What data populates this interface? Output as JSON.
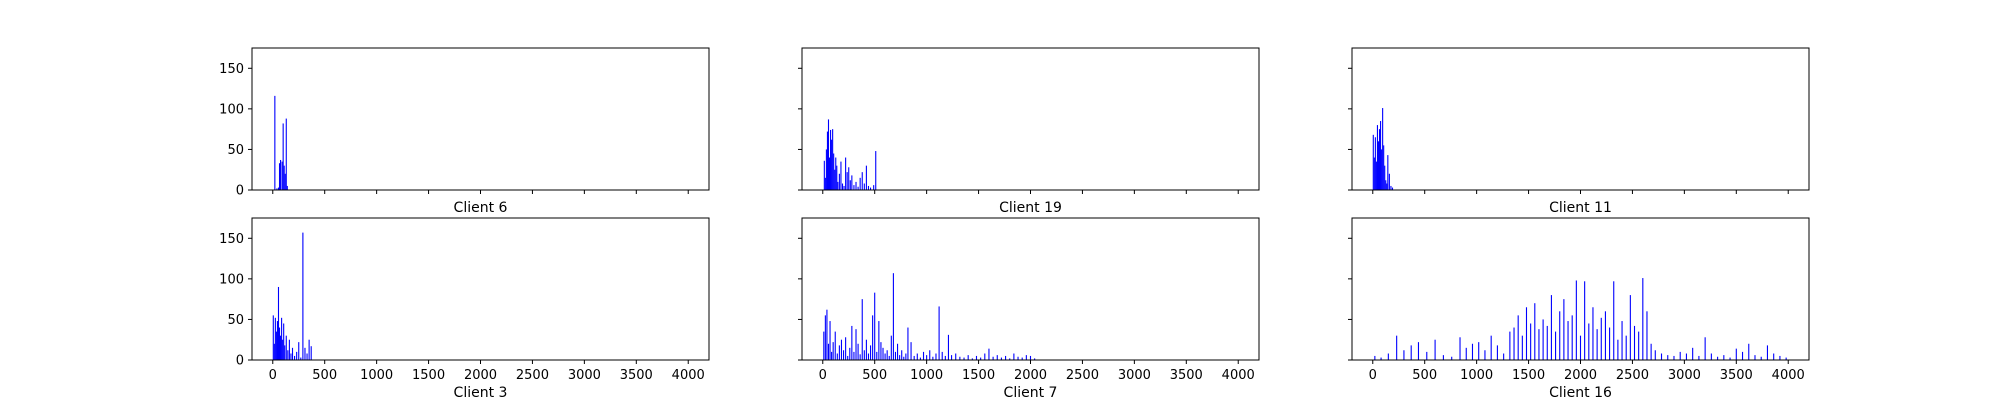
{
  "chart_data": [
    {
      "type": "bar",
      "xlabel": "Client 6",
      "xlim": [
        -200,
        4200
      ],
      "ylim": [
        0,
        175
      ],
      "xticks": [],
      "yticks": [
        0,
        50,
        100,
        150
      ],
      "color": "#0000ff",
      "x": [
        20,
        40,
        55,
        65,
        75,
        90,
        100,
        110,
        120,
        130,
        140
      ],
      "values": [
        116,
        2,
        3,
        33,
        37,
        35,
        82,
        30,
        20,
        88,
        5
      ]
    },
    {
      "type": "bar",
      "xlabel": "Client 19",
      "xlim": [
        -200,
        4200
      ],
      "ylim": [
        0,
        175
      ],
      "xticks": [],
      "yticks": [],
      "color": "#0000ff",
      "x": [
        15,
        25,
        35,
        45,
        55,
        65,
        75,
        85,
        95,
        105,
        115,
        125,
        135,
        145,
        160,
        175,
        190,
        205,
        220,
        235,
        250,
        265,
        280,
        300,
        320,
        340,
        360,
        380,
        400,
        420,
        440,
        460,
        490,
        510
      ],
      "values": [
        36,
        15,
        50,
        72,
        87,
        40,
        74,
        62,
        75,
        45,
        25,
        40,
        30,
        10,
        20,
        35,
        8,
        5,
        40,
        22,
        28,
        12,
        18,
        6,
        10,
        4,
        15,
        22,
        8,
        30,
        5,
        3,
        6,
        48
      ]
    },
    {
      "type": "bar",
      "xlabel": "Client 11",
      "xlim": [
        -200,
        4200
      ],
      "ylim": [
        0,
        175
      ],
      "xticks": [],
      "yticks": [],
      "color": "#0000ff",
      "x": [
        5,
        15,
        25,
        35,
        45,
        55,
        65,
        75,
        85,
        95,
        105,
        115,
        125,
        135,
        145,
        160,
        175,
        190
      ],
      "values": [
        68,
        40,
        65,
        35,
        80,
        60,
        75,
        85,
        50,
        101,
        55,
        30,
        12,
        8,
        43,
        20,
        5,
        3
      ]
    },
    {
      "type": "bar",
      "xlabel": "Client 3",
      "xlim": [
        -200,
        4200
      ],
      "ylim": [
        0,
        175
      ],
      "xticks": [
        0,
        500,
        1000,
        1500,
        2000,
        2500,
        3000,
        3500,
        4000
      ],
      "yticks": [
        0,
        50,
        100,
        150
      ],
      "color": "#0000ff",
      "x": [
        5,
        15,
        25,
        35,
        45,
        55,
        65,
        75,
        85,
        95,
        105,
        115,
        130,
        145,
        160,
        175,
        190,
        210,
        230,
        250,
        270,
        290,
        310,
        330,
        350,
        370
      ],
      "values": [
        55,
        20,
        52,
        35,
        48,
        90,
        40,
        30,
        52,
        25,
        45,
        18,
        30,
        12,
        25,
        8,
        15,
        5,
        10,
        22,
        3,
        157,
        15,
        8,
        25,
        17
      ]
    },
    {
      "type": "bar",
      "xlabel": "Client 7",
      "xlim": [
        -200,
        4200
      ],
      "ylim": [
        0,
        175
      ],
      "xticks": [
        0,
        500,
        1000,
        1500,
        2000,
        2500,
        3000,
        3500,
        4000
      ],
      "yticks": [],
      "color": "#0000ff",
      "x": [
        10,
        25,
        40,
        55,
        70,
        85,
        100,
        120,
        140,
        160,
        180,
        200,
        220,
        240,
        260,
        280,
        300,
        320,
        340,
        360,
        380,
        400,
        420,
        440,
        460,
        480,
        500,
        520,
        540,
        560,
        580,
        600,
        620,
        640,
        660,
        680,
        700,
        720,
        740,
        760,
        780,
        800,
        820,
        850,
        880,
        910,
        940,
        970,
        1000,
        1030,
        1060,
        1090,
        1120,
        1150,
        1180,
        1210,
        1240,
        1280,
        1320,
        1360,
        1400,
        1440,
        1480,
        1520,
        1560,
        1600,
        1640,
        1680,
        1720,
        1760,
        1800,
        1840,
        1880,
        1920,
        1960,
        2000,
        2040
      ],
      "values": [
        35,
        55,
        62,
        20,
        48,
        10,
        22,
        35,
        8,
        18,
        25,
        12,
        28,
        5,
        15,
        42,
        10,
        38,
        20,
        7,
        75,
        12,
        25,
        8,
        18,
        55,
        83,
        10,
        48,
        22,
        15,
        8,
        12,
        5,
        30,
        107,
        10,
        20,
        6,
        12,
        4,
        8,
        40,
        22,
        5,
        8,
        3,
        10,
        6,
        12,
        4,
        8,
        66,
        10,
        5,
        31,
        6,
        8,
        4,
        3,
        6,
        2,
        5,
        3,
        8,
        14,
        4,
        6,
        3,
        5,
        2,
        8,
        4,
        3,
        6,
        5,
        2
      ]
    },
    {
      "type": "bar",
      "xlabel": "Client 16",
      "xlim": [
        -200,
        4200
      ],
      "ylim": [
        0,
        175
      ],
      "xticks": [
        0,
        500,
        1000,
        1500,
        2000,
        2500,
        3000,
        3500,
        4000
      ],
      "yticks": [],
      "color": "#0000ff",
      "x": [
        20,
        80,
        150,
        230,
        300,
        370,
        440,
        520,
        600,
        680,
        760,
        840,
        900,
        960,
        1020,
        1080,
        1140,
        1200,
        1260,
        1320,
        1360,
        1400,
        1440,
        1480,
        1520,
        1560,
        1600,
        1640,
        1680,
        1720,
        1760,
        1800,
        1840,
        1880,
        1920,
        1960,
        2000,
        2040,
        2080,
        2120,
        2160,
        2200,
        2240,
        2280,
        2320,
        2360,
        2400,
        2440,
        2480,
        2520,
        2560,
        2600,
        2640,
        2680,
        2720,
        2780,
        2840,
        2900,
        2960,
        3020,
        3080,
        3140,
        3200,
        3260,
        3320,
        3380,
        3440,
        3500,
        3560,
        3620,
        3680,
        3740,
        3800,
        3860,
        3920,
        3980
      ],
      "values": [
        5,
        3,
        8,
        30,
        12,
        18,
        22,
        10,
        25,
        6,
        4,
        28,
        15,
        20,
        22,
        12,
        30,
        18,
        8,
        35,
        40,
        55,
        30,
        65,
        45,
        70,
        38,
        50,
        42,
        80,
        35,
        60,
        75,
        48,
        55,
        98,
        30,
        97,
        45,
        65,
        38,
        52,
        60,
        40,
        97,
        25,
        48,
        30,
        80,
        42,
        35,
        101,
        60,
        20,
        12,
        8,
        6,
        5,
        10,
        8,
        15,
        5,
        28,
        8,
        4,
        6,
        3,
        14,
        10,
        20,
        6,
        4,
        18,
        8,
        5,
        3
      ]
    }
  ]
}
